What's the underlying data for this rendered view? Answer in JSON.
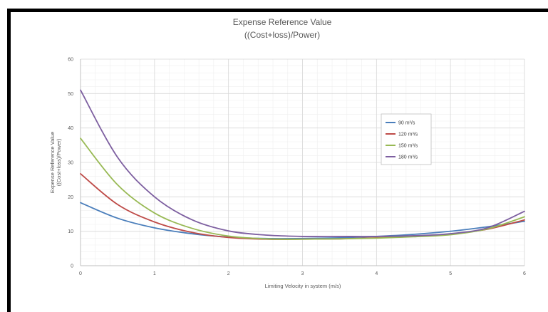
{
  "chart_data": {
    "type": "line",
    "title_line1": "Expense Reference Value",
    "title_line2": "((Cost+loss)/Power)",
    "xlabel": "Limiting Velocity in system (m/s)",
    "ylabel_line1": "Expense Reference Value",
    "ylabel_line2": "((Cost+loss)/Power)",
    "xlim": [
      0,
      6
    ],
    "ylim": [
      0,
      60
    ],
    "x_ticks": [
      0,
      1,
      2,
      3,
      4,
      5,
      6
    ],
    "y_ticks": [
      0,
      10,
      20,
      30,
      40,
      50,
      60
    ],
    "grid": true,
    "legend_position": "center-right",
    "series": [
      {
        "name": "90 m³/s",
        "color": "#4a7ebb",
        "x": [
          0,
          0.5,
          1,
          1.5,
          2,
          2.5,
          3,
          3.5,
          4,
          4.5,
          5,
          5.5,
          6
        ],
        "y": [
          18.3,
          13.8,
          11.0,
          9.3,
          8.3,
          7.9,
          7.9,
          8.1,
          8.5,
          9.1,
          10.0,
          11.3,
          12.9
        ]
      },
      {
        "name": "120 m³/s",
        "color": "#be4b48",
        "x": [
          0,
          0.5,
          1,
          1.5,
          2,
          2.5,
          3,
          3.5,
          4,
          4.5,
          5,
          5.5,
          6
        ],
        "y": [
          26.7,
          17.8,
          12.7,
          9.7,
          8.2,
          7.7,
          7.7,
          7.8,
          8.1,
          8.5,
          9.2,
          10.6,
          13.3
        ]
      },
      {
        "name": "150 m³/s",
        "color": "#98b954",
        "x": [
          0,
          0.5,
          1,
          1.5,
          2,
          2.5,
          3,
          3.5,
          4,
          4.5,
          5,
          5.5,
          6
        ],
        "y": [
          37.0,
          23.5,
          15.3,
          10.9,
          8.6,
          7.8,
          7.7,
          7.8,
          8.0,
          8.4,
          9.0,
          10.7,
          14.2
        ]
      },
      {
        "name": "180 m³/s",
        "color": "#7d5fa0",
        "x": [
          0,
          0.5,
          1,
          1.5,
          2,
          2.5,
          3,
          3.5,
          4,
          4.5,
          5,
          5.5,
          6
        ],
        "y": [
          51.0,
          31.5,
          20.0,
          13.4,
          10.1,
          8.9,
          8.5,
          8.5,
          8.5,
          8.7,
          9.3,
          11.0,
          15.8
        ]
      }
    ]
  }
}
